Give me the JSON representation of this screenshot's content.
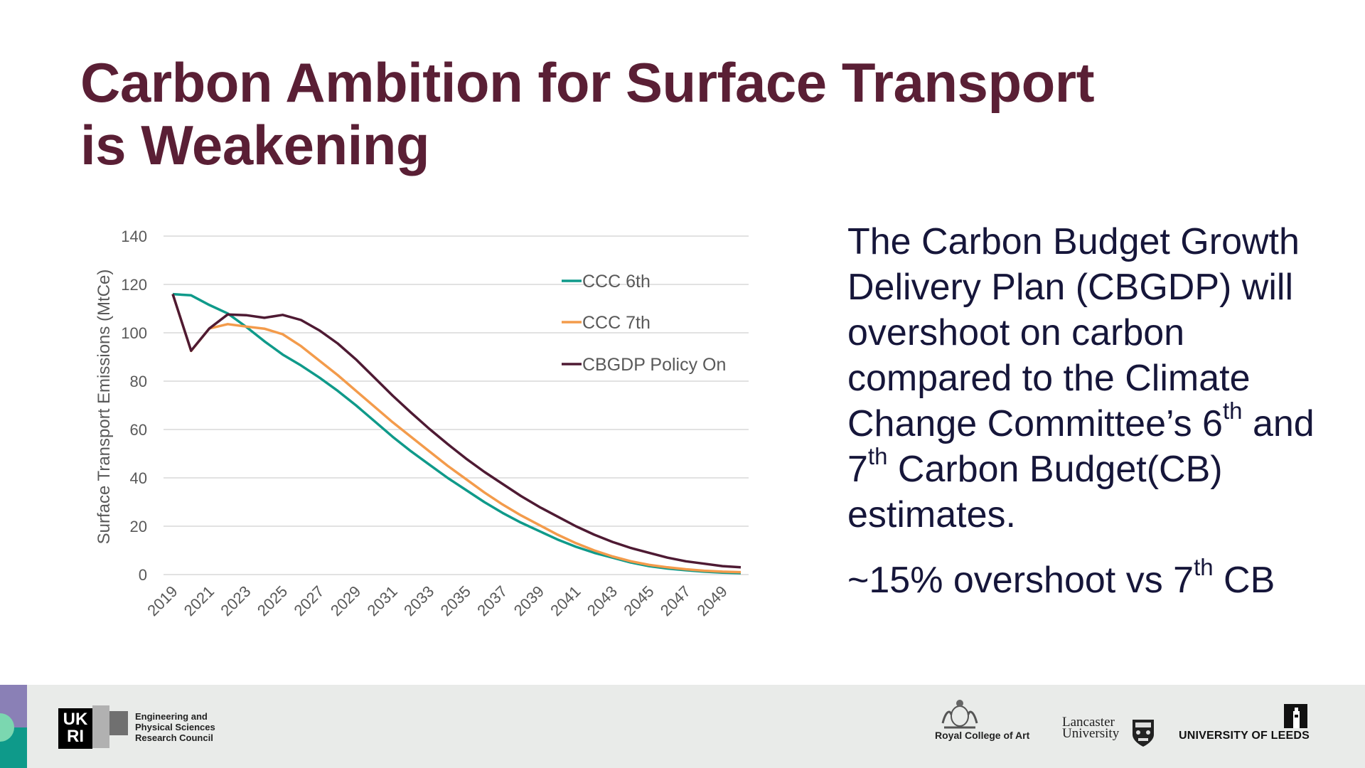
{
  "slide": {
    "title_lines": [
      "Carbon Ambition for Surface Transport",
      "is Weakening"
    ],
    "body": {
      "para1_parts": {
        "a": "The Carbon Budget Growth Delivery Plan (CBGDP) will overshoot on carbon compared to the Climate Change Committee’s 6",
        "sup1": "th",
        "b": " and 7",
        "sup2": "th",
        "c": " Carbon Budget(CB) estimates."
      },
      "para2_parts": {
        "a": "~15% overshoot vs 7",
        "sup": "th",
        "b": " CB"
      }
    },
    "footer": {
      "ukri_logo_text": "UK RI",
      "epsrc_lines": [
        "Engineering and",
        "Physical Sciences",
        "Research Council"
      ],
      "rca_text": "Royal College of Art",
      "lancaster_lines": [
        "Lancaster",
        "University"
      ],
      "leeds_text": "UNIVERSITY OF LEEDS",
      "colors": {
        "strip_top": "#8a80b6",
        "strip_bottom": "#0e9a8a",
        "circle": "#7bd7b0"
      }
    }
  },
  "chart_data": {
    "type": "line",
    "title": "",
    "xlabel": "",
    "ylabel": "Surface Transport Emissions (MtCe)",
    "ylim": [
      0,
      140
    ],
    "yticks": [
      0,
      20,
      40,
      60,
      80,
      100,
      120,
      140
    ],
    "x": [
      2019,
      2020,
      2021,
      2022,
      2023,
      2024,
      2025,
      2026,
      2027,
      2028,
      2029,
      2030,
      2031,
      2032,
      2033,
      2034,
      2035,
      2036,
      2037,
      2038,
      2039,
      2040,
      2041,
      2042,
      2043,
      2044,
      2045,
      2046,
      2047,
      2048,
      2049,
      2050
    ],
    "xtick_labels": [
      "2019",
      "2021",
      "2023",
      "2025",
      "2027",
      "2029",
      "2031",
      "2033",
      "2035",
      "2037",
      "2039",
      "2041",
      "2043",
      "2045",
      "2047",
      "2049"
    ],
    "grid": true,
    "legend_position": "top-right",
    "series": [
      {
        "name": "CCC 6th",
        "color": "#0f9a8a",
        "values": [
          116,
          115.5,
          111.5,
          108,
          102.5,
          96.5,
          91,
          86.5,
          81.5,
          76,
          70,
          63.5,
          57,
          51,
          45.5,
          40,
          35,
          30,
          25.5,
          21.5,
          18,
          14.5,
          11.5,
          9,
          7,
          5,
          3.5,
          2.5,
          1.8,
          1.2,
          0.8,
          0.6
        ]
      },
      {
        "name": "CCC 7th",
        "color": "#f39b4b",
        "values": [
          116,
          92.5,
          101.8,
          103.6,
          102.6,
          101.7,
          99.4,
          94.5,
          88.5,
          82.5,
          76,
          69.5,
          63,
          57,
          51,
          45,
          39.5,
          34,
          29,
          24.5,
          20.5,
          16.5,
          13,
          10,
          7.5,
          5.5,
          4,
          3,
          2.2,
          1.6,
          1.2,
          1
        ]
      },
      {
        "name": "CBGDP Policy On",
        "color": "#4e1a33",
        "values": [
          116,
          92.6,
          101.8,
          107.6,
          107.3,
          106.2,
          107.4,
          105.3,
          101,
          95.6,
          89,
          81.5,
          74,
          67,
          60.3,
          54,
          48,
          42.5,
          37.5,
          32.5,
          28,
          24,
          20,
          16.5,
          13.5,
          11,
          9,
          7,
          5.5,
          4.5,
          3.5,
          3
        ]
      }
    ]
  }
}
